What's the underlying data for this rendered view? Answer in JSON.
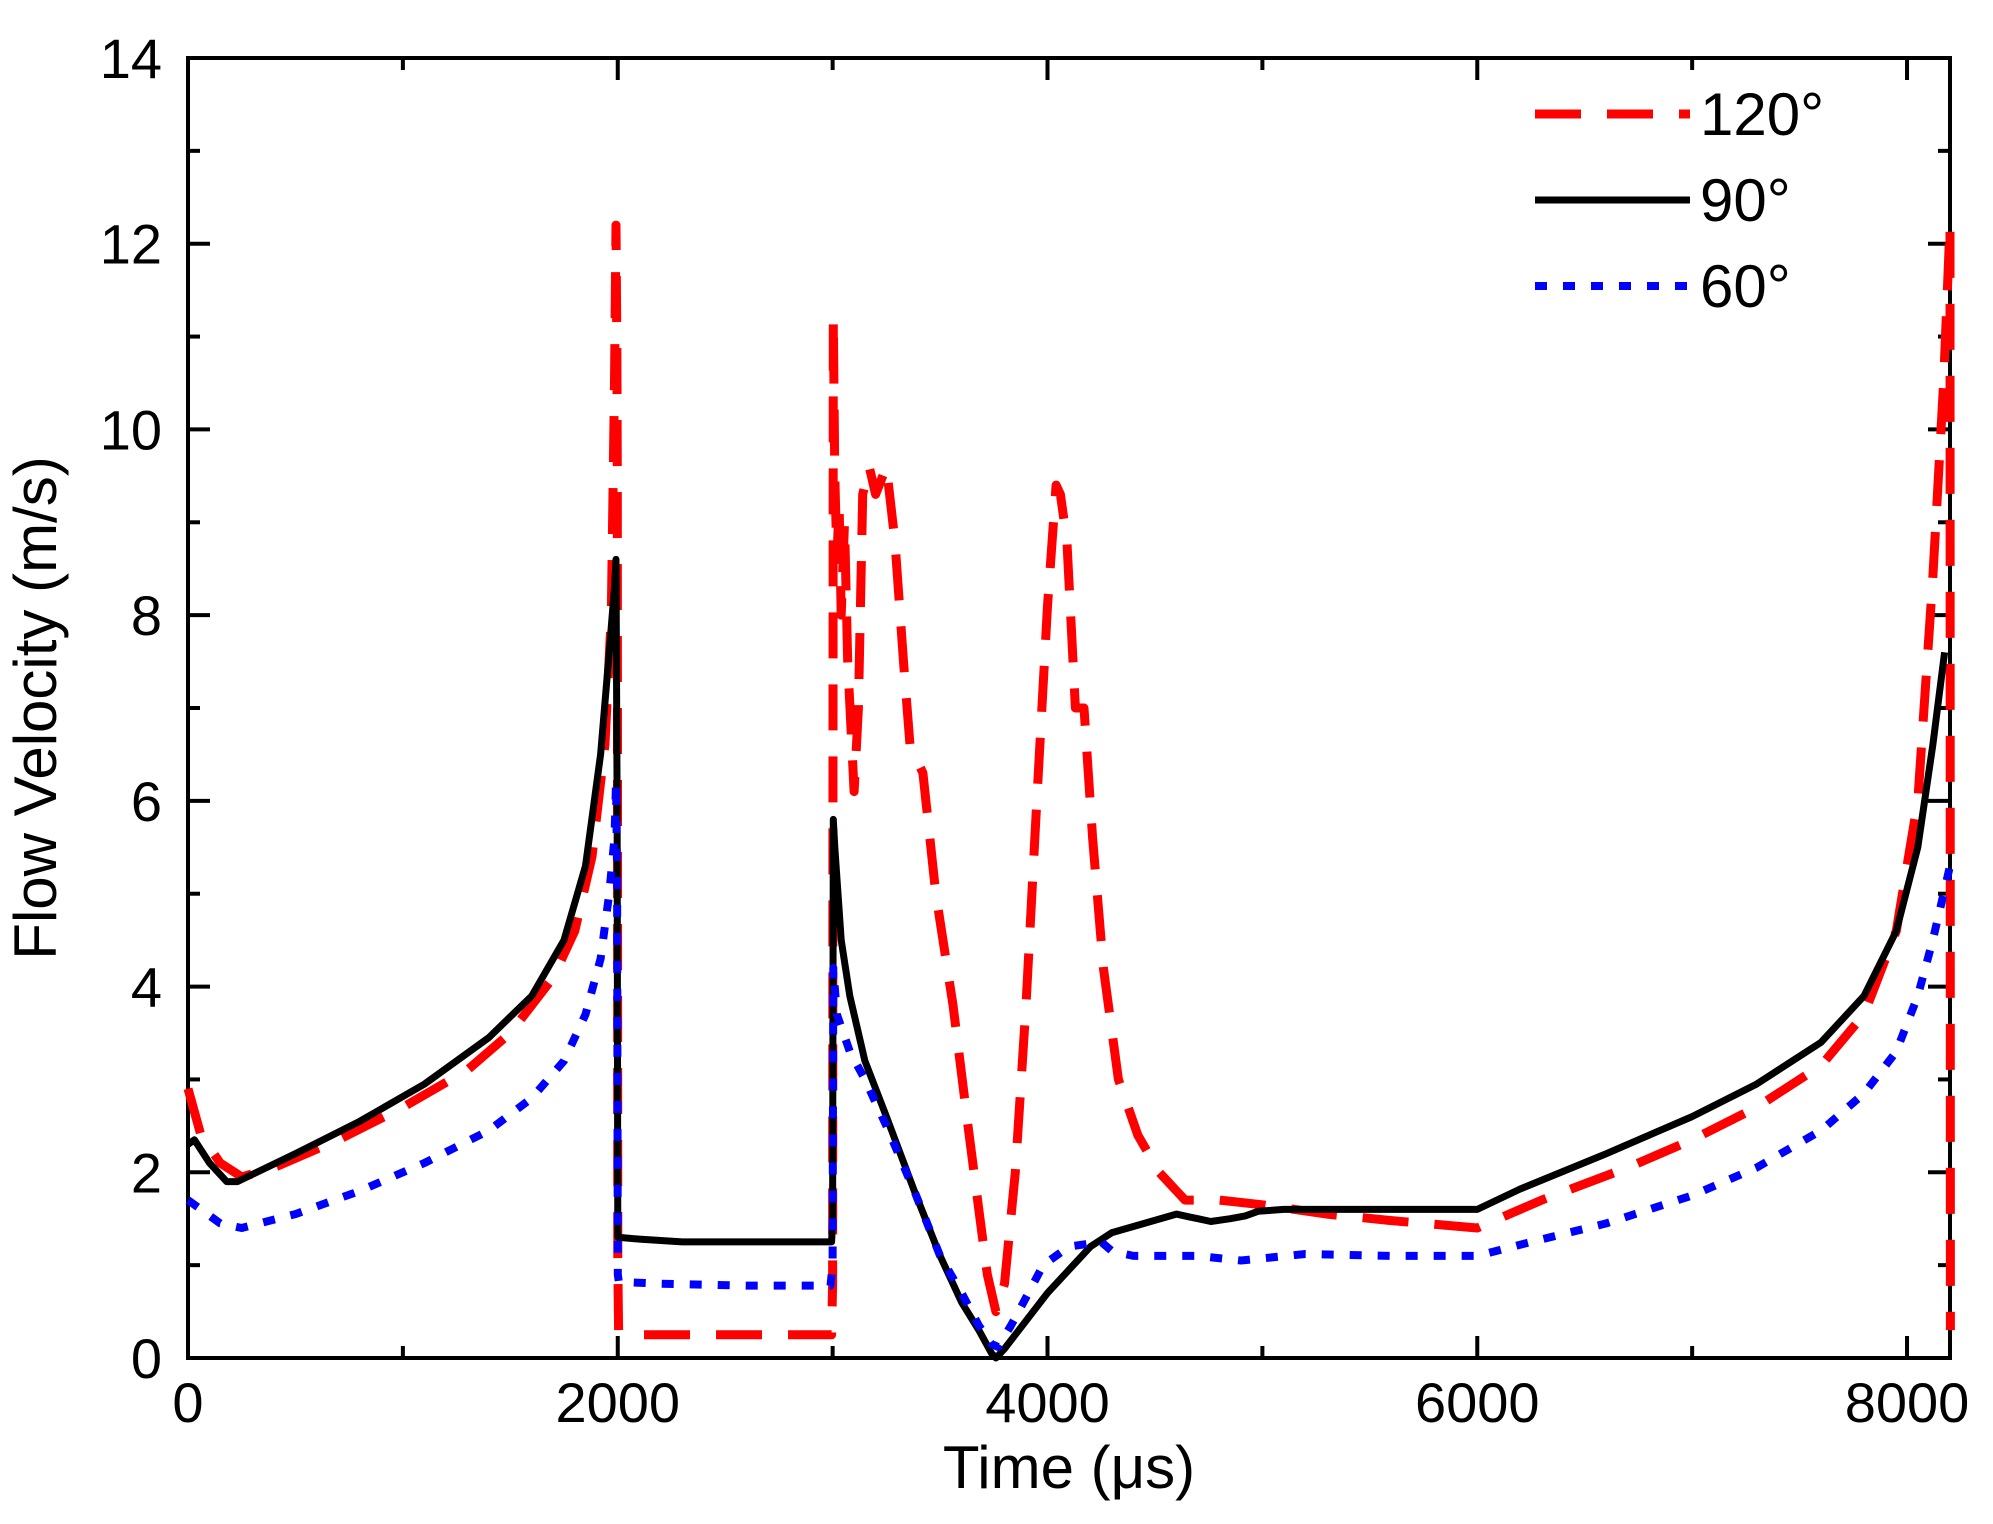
{
  "chart_data": {
    "type": "line",
    "title": "",
    "xlabel": "Time (μs)",
    "ylabel": "Flow Velocity (m/s)",
    "xlim": [
      0,
      8200
    ],
    "ylim": [
      0,
      14
    ],
    "x_ticks": [
      0,
      2000,
      4000,
      6000,
      8000
    ],
    "x_tick_labels": [
      "0",
      "2000",
      "4000",
      "6000",
      "8000"
    ],
    "y_ticks": [
      0,
      2,
      4,
      6,
      8,
      10,
      12,
      14
    ],
    "y_tick_labels": [
      "0",
      "2",
      "4",
      "6",
      "8",
      "10",
      "12",
      "14"
    ],
    "legend_position": "top-right",
    "series": [
      {
        "name": "120°",
        "color": "#ff0000",
        "style": "dashed",
        "points": [
          [
            0,
            2.9
          ],
          [
            60,
            2.4
          ],
          [
            150,
            2.1
          ],
          [
            250,
            1.95
          ],
          [
            400,
            2.05
          ],
          [
            700,
            2.35
          ],
          [
            1000,
            2.7
          ],
          [
            1300,
            3.1
          ],
          [
            1500,
            3.5
          ],
          [
            1700,
            4.1
          ],
          [
            1800,
            4.6
          ],
          [
            1880,
            5.4
          ],
          [
            1940,
            6.6
          ],
          [
            1970,
            8.0
          ],
          [
            1985,
            10.5
          ],
          [
            1992,
            12.2
          ],
          [
            1996,
            10.8
          ],
          [
            1998,
            9.5
          ],
          [
            2000,
            1.0
          ],
          [
            2004,
            0.3
          ],
          [
            2100,
            0.25
          ],
          [
            2500,
            0.25
          ],
          [
            2995,
            0.25
          ],
          [
            3000,
            0.8
          ],
          [
            3003,
            11.2
          ],
          [
            3010,
            9.5
          ],
          [
            3020,
            8.6
          ],
          [
            3030,
            9.2
          ],
          [
            3040,
            8.0
          ],
          [
            3055,
            9.0
          ],
          [
            3070,
            7.5
          ],
          [
            3085,
            6.8
          ],
          [
            3100,
            6.1
          ],
          [
            3120,
            7.0
          ],
          [
            3140,
            9.3
          ],
          [
            3170,
            9.6
          ],
          [
            3200,
            9.3
          ],
          [
            3250,
            9.6
          ],
          [
            3290,
            8.8
          ],
          [
            3330,
            7.5
          ],
          [
            3360,
            6.6
          ],
          [
            3420,
            6.3
          ],
          [
            3480,
            5.0
          ],
          [
            3560,
            3.8
          ],
          [
            3630,
            2.5
          ],
          [
            3680,
            1.6
          ],
          [
            3720,
            0.9
          ],
          [
            3760,
            0.5
          ],
          [
            3800,
            0.8
          ],
          [
            3850,
            2.0
          ],
          [
            3900,
            3.8
          ],
          [
            3950,
            6.0
          ],
          [
            4000,
            8.1
          ],
          [
            4040,
            9.4
          ],
          [
            4060,
            9.3
          ],
          [
            4090,
            8.8
          ],
          [
            4130,
            7.0
          ],
          [
            4170,
            7.0
          ],
          [
            4210,
            5.6
          ],
          [
            4260,
            4.2
          ],
          [
            4330,
            3.0
          ],
          [
            4420,
            2.4
          ],
          [
            4520,
            2.0
          ],
          [
            4640,
            1.7
          ],
          [
            4800,
            1.7
          ],
          [
            5000,
            1.65
          ],
          [
            5300,
            1.55
          ],
          [
            5600,
            1.48
          ],
          [
            5900,
            1.42
          ],
          [
            6000,
            1.4
          ],
          [
            6300,
            1.7
          ],
          [
            6700,
            2.05
          ],
          [
            7000,
            2.35
          ],
          [
            7300,
            2.7
          ],
          [
            7600,
            3.15
          ],
          [
            7800,
            3.7
          ],
          [
            7950,
            4.6
          ],
          [
            8050,
            6.0
          ],
          [
            8120,
            8.4
          ],
          [
            8170,
            10.5
          ],
          [
            8200,
            12.2
          ],
          [
            8202,
            0.3
          ]
        ]
      },
      {
        "name": "90°",
        "color": "#000000",
        "style": "solid",
        "points": [
          [
            0,
            2.3
          ],
          [
            30,
            2.35
          ],
          [
            100,
            2.1
          ],
          [
            180,
            1.9
          ],
          [
            230,
            1.9
          ],
          [
            500,
            2.2
          ],
          [
            800,
            2.55
          ],
          [
            1100,
            2.95
          ],
          [
            1400,
            3.45
          ],
          [
            1600,
            3.9
          ],
          [
            1750,
            4.5
          ],
          [
            1850,
            5.3
          ],
          [
            1920,
            6.5
          ],
          [
            1960,
            7.6
          ],
          [
            1985,
            8.3
          ],
          [
            1992,
            8.6
          ],
          [
            1997,
            6.0
          ],
          [
            2000,
            1.3
          ],
          [
            2100,
            1.28
          ],
          [
            2300,
            1.25
          ],
          [
            2700,
            1.25
          ],
          [
            2995,
            1.25
          ],
          [
            3000,
            1.5
          ],
          [
            3003,
            5.8
          ],
          [
            3010,
            5.5
          ],
          [
            3040,
            4.5
          ],
          [
            3080,
            3.9
          ],
          [
            3150,
            3.2
          ],
          [
            3250,
            2.6
          ],
          [
            3380,
            1.8
          ],
          [
            3500,
            1.1
          ],
          [
            3600,
            0.6
          ],
          [
            3680,
            0.3
          ],
          [
            3740,
            0.05
          ],
          [
            3760,
            0.0
          ],
          [
            3800,
            0.1
          ],
          [
            3900,
            0.4
          ],
          [
            4000,
            0.7
          ],
          [
            4100,
            0.95
          ],
          [
            4200,
            1.2
          ],
          [
            4300,
            1.35
          ],
          [
            4450,
            1.45
          ],
          [
            4600,
            1.55
          ],
          [
            4660,
            1.52
          ],
          [
            4700,
            1.5
          ],
          [
            4760,
            1.47
          ],
          [
            4850,
            1.5
          ],
          [
            4920,
            1.53
          ],
          [
            4980,
            1.58
          ],
          [
            5100,
            1.6
          ],
          [
            5500,
            1.6
          ],
          [
            6000,
            1.6
          ],
          [
            6200,
            1.82
          ],
          [
            6600,
            2.2
          ],
          [
            7000,
            2.6
          ],
          [
            7300,
            2.95
          ],
          [
            7600,
            3.4
          ],
          [
            7800,
            3.9
          ],
          [
            7950,
            4.6
          ],
          [
            8050,
            5.5
          ],
          [
            8120,
            6.6
          ],
          [
            8175,
            7.6
          ]
        ]
      },
      {
        "name": "60°",
        "color": "#0000ff",
        "style": "dotted",
        "points": [
          [
            0,
            1.7
          ],
          [
            60,
            1.6
          ],
          [
            150,
            1.45
          ],
          [
            250,
            1.4
          ],
          [
            500,
            1.55
          ],
          [
            800,
            1.8
          ],
          [
            1100,
            2.1
          ],
          [
            1400,
            2.45
          ],
          [
            1600,
            2.8
          ],
          [
            1750,
            3.2
          ],
          [
            1850,
            3.7
          ],
          [
            1920,
            4.3
          ],
          [
            1960,
            5.0
          ],
          [
            1985,
            5.6
          ],
          [
            1992,
            6.2
          ],
          [
            1997,
            5.2
          ],
          [
            2000,
            0.9
          ],
          [
            2005,
            0.82
          ],
          [
            2200,
            0.8
          ],
          [
            2600,
            0.78
          ],
          [
            2990,
            0.78
          ],
          [
            3000,
            1.0
          ],
          [
            3003,
            4.2
          ],
          [
            3020,
            3.7
          ],
          [
            3080,
            3.3
          ],
          [
            3150,
            3.0
          ],
          [
            3250,
            2.5
          ],
          [
            3380,
            1.8
          ],
          [
            3500,
            1.1
          ],
          [
            3600,
            0.7
          ],
          [
            3680,
            0.35
          ],
          [
            3740,
            0.15
          ],
          [
            3770,
            0.12
          ],
          [
            3830,
            0.35
          ],
          [
            3900,
            0.65
          ],
          [
            3980,
            1.0
          ],
          [
            4100,
            1.2
          ],
          [
            4250,
            1.25
          ],
          [
            4300,
            1.15
          ],
          [
            4400,
            1.1
          ],
          [
            4550,
            1.1
          ],
          [
            4700,
            1.1
          ],
          [
            4900,
            1.05
          ],
          [
            5200,
            1.12
          ],
          [
            5600,
            1.1
          ],
          [
            6000,
            1.1
          ],
          [
            6200,
            1.22
          ],
          [
            6600,
            1.45
          ],
          [
            7000,
            1.75
          ],
          [
            7300,
            2.05
          ],
          [
            7600,
            2.45
          ],
          [
            7800,
            2.85
          ],
          [
            7950,
            3.3
          ],
          [
            8050,
            3.9
          ],
          [
            8120,
            4.5
          ],
          [
            8170,
            5.0
          ],
          [
            8200,
            5.3
          ]
        ]
      }
    ]
  }
}
